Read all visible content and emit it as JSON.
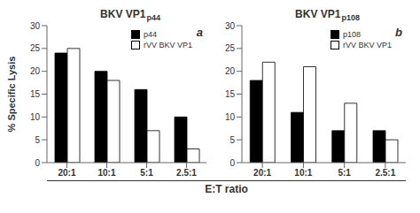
{
  "chart_data": [
    {
      "type": "bar",
      "title": "BKV VP1",
      "subtitle": "p44",
      "annotations": [
        "a"
      ],
      "xlabel": "E:T ratio",
      "ylabel": "% Specific Lysis",
      "categories": [
        "20:1",
        "10:1",
        "5:1",
        "2.5:1"
      ],
      "series": [
        {
          "name": "p44",
          "color": "#000000",
          "values": [
            24,
            20,
            16,
            10
          ]
        },
        {
          "name": "rVV BKV VP1",
          "color": "#ffffff",
          "values": [
            25,
            18,
            7,
            3
          ]
        }
      ],
      "ylim": [
        0,
        30
      ],
      "yticks": [
        0,
        5,
        10,
        15,
        20,
        25,
        30
      ],
      "grid": false,
      "legend": "upper right"
    },
    {
      "type": "bar",
      "title": "BKV VP1",
      "subtitle": "p108",
      "annotations": [
        "b"
      ],
      "categories": [
        "20:1",
        "10:1",
        "5:1",
        "2.5:1"
      ],
      "series": [
        {
          "name": "p108",
          "color": "#000000",
          "values": [
            18,
            11,
            7,
            7
          ]
        },
        {
          "name": "rVV BKV VP1",
          "color": "#ffffff",
          "values": [
            22,
            21,
            13,
            5
          ]
        }
      ],
      "ylim": [
        0,
        30
      ],
      "yticks": [
        0,
        5,
        10,
        15,
        20,
        25,
        30
      ],
      "grid": false,
      "legend": "upper right"
    }
  ]
}
